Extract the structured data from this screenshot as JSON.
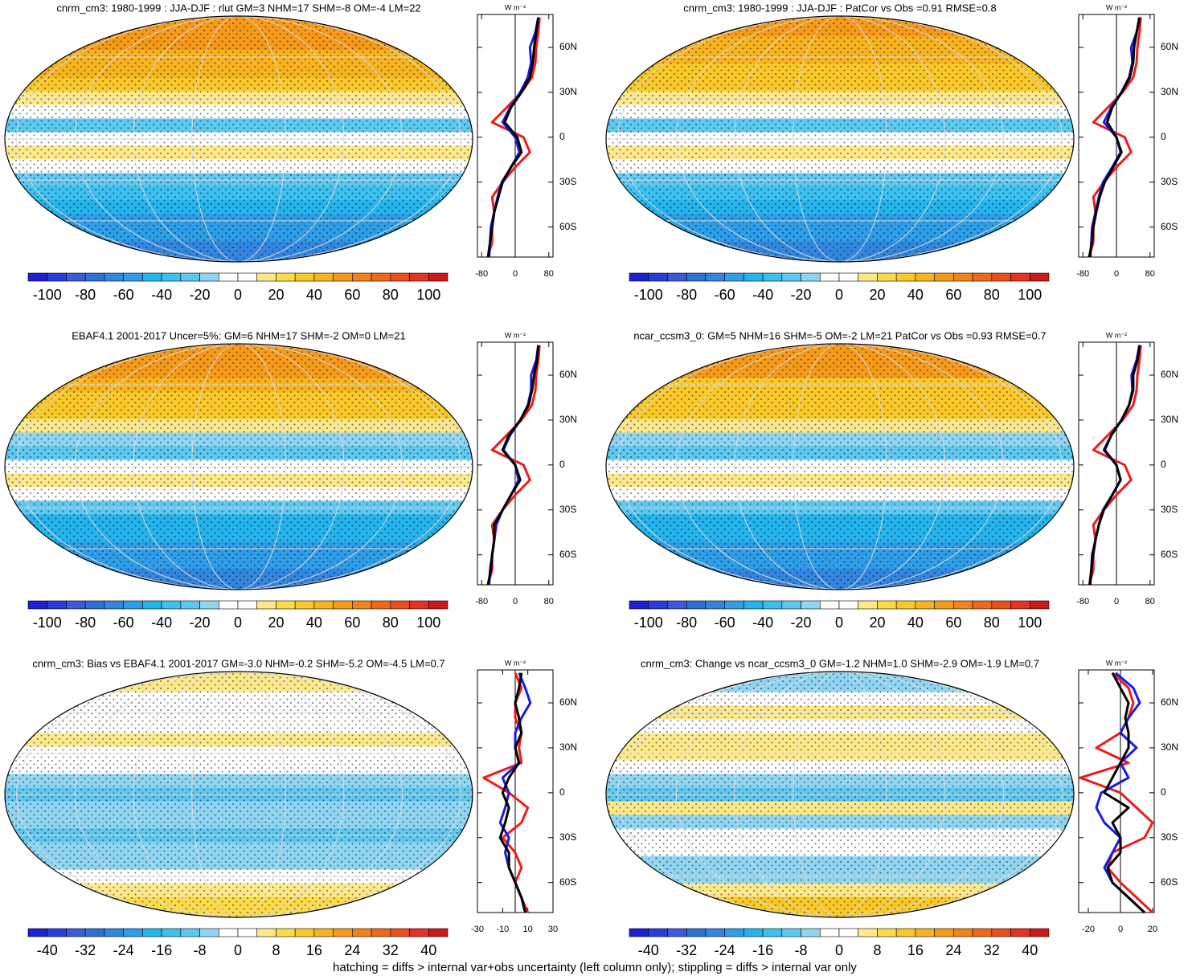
{
  "chart_data": [
    {
      "type": "zonal-map",
      "title": "cnrm_cm3: 1980-1999 : JJA-DJF : rlut GM=3 NHM=17 SHM=-8 OM=-4 LM=22",
      "units": "W m⁻²",
      "colorbar": {
        "lim": [
          -110,
          110
        ],
        "ticks": [
          -100,
          -80,
          -60,
          -40,
          -20,
          0,
          20,
          40,
          60,
          80,
          100
        ],
        "colors": [
          "#1f1fd6",
          "#2a3cdc",
          "#3b5bdc",
          "#2f70d8",
          "#3386e0",
          "#2f9ee8",
          "#25b4ec",
          "#3cc0f0",
          "#5ec8f0",
          "#8fd5f2",
          "#ffffff",
          "#ffffff",
          "#fde98a",
          "#fbdb4a",
          "#f9c82a",
          "#f8b420",
          "#f59a1a",
          "#f2821a",
          "#ee6a1a",
          "#e9501e",
          "#e53224",
          "#cc1a1a"
        ]
      },
      "xlim": [
        -90,
        90
      ],
      "xticks": [
        -80,
        0,
        80
      ],
      "ylim": [
        -80,
        82
      ],
      "yticks": [
        {
          "value": 60,
          "label": "60N"
        },
        {
          "value": 30,
          "label": "30N"
        },
        0,
        {
          "value": -30,
          "label": "30S"
        },
        {
          "value": -60,
          "label": "60S"
        }
      ],
      "y": [
        80,
        70,
        60,
        50,
        40,
        30,
        20,
        10,
        0,
        -10,
        -20,
        -30,
        -40,
        -50,
        -60,
        -70,
        -80
      ],
      "series": [
        {
          "color": "#000000",
          "values": [
            55,
            50,
            45,
            42,
            35,
            15,
            -10,
            -25,
            5,
            15,
            -10,
            -30,
            -40,
            -50,
            -55,
            -60,
            -65
          ]
        },
        {
          "color": "#1a1ae6",
          "values": [
            55,
            48,
            35,
            38,
            30,
            12,
            -12,
            -30,
            0,
            10,
            -10,
            -32,
            -42,
            -50,
            -58,
            -60,
            -62
          ]
        },
        {
          "color": "#ee1c1c",
          "values": [
            58,
            55,
            50,
            48,
            40,
            15,
            -20,
            -55,
            20,
            35,
            0,
            -30,
            -55,
            -50,
            -55,
            -55,
            -65
          ]
        }
      ]
    },
    {
      "type": "zonal-map",
      "title": "cnrm_cm3: 1980-1999 : JJA-DJF : PatCor vs Obs =0.91 RMSE=0.8",
      "units": "W m⁻²",
      "colorbar": {
        "lim": [
          -110,
          110
        ],
        "ticks": [
          -100,
          -80,
          -60,
          -40,
          -20,
          0,
          20,
          40,
          60,
          80,
          100
        ],
        "colors": [
          "#1f1fd6",
          "#2a3cdc",
          "#3b5bdc",
          "#2f70d8",
          "#3386e0",
          "#2f9ee8",
          "#25b4ec",
          "#3cc0f0",
          "#5ec8f0",
          "#8fd5f2",
          "#ffffff",
          "#ffffff",
          "#fde98a",
          "#fbdb4a",
          "#f9c82a",
          "#f8b420",
          "#f59a1a",
          "#f2821a",
          "#ee6a1a",
          "#e9501e",
          "#e53224",
          "#cc1a1a"
        ]
      },
      "xlim": [
        -90,
        90
      ],
      "xticks": [
        -80,
        0,
        80
      ],
      "ylim": [
        -80,
        82
      ],
      "yticks": [
        {
          "value": 60,
          "label": "60N"
        },
        {
          "value": 30,
          "label": "30N"
        },
        0,
        {
          "value": -30,
          "label": "30S"
        },
        {
          "value": -60,
          "label": "60S"
        }
      ],
      "y": [
        80,
        70,
        60,
        50,
        40,
        30,
        20,
        10,
        0,
        -10,
        -20,
        -30,
        -40,
        -50,
        -60,
        -70,
        -80
      ],
      "series": [
        {
          "color": "#000000",
          "values": [
            55,
            48,
            42,
            40,
            32,
            12,
            -10,
            -22,
            0,
            12,
            -8,
            -28,
            -40,
            -48,
            -55,
            -58,
            -65
          ]
        },
        {
          "color": "#1a1ae6",
          "values": [
            55,
            48,
            35,
            38,
            30,
            12,
            -12,
            -30,
            0,
            10,
            -10,
            -32,
            -42,
            -50,
            -58,
            -60,
            -62
          ]
        },
        {
          "color": "#ee1c1c",
          "values": [
            58,
            55,
            50,
            48,
            40,
            15,
            -20,
            -55,
            20,
            35,
            0,
            -30,
            -55,
            -50,
            -55,
            -55,
            -65
          ]
        }
      ]
    },
    {
      "type": "zonal-map",
      "title": "EBAF4.1 2001-2017 Uncer=5%: GM=6 NHM=17 SHM=-2 OM=0 LM=21",
      "units": "W m⁻²",
      "colorbar": {
        "lim": [
          -110,
          110
        ],
        "ticks": [
          -100,
          -80,
          -60,
          -40,
          -20,
          0,
          20,
          40,
          60,
          80,
          100
        ],
        "colors": [
          "#1f1fd6",
          "#2a3cdc",
          "#3b5bdc",
          "#2f70d8",
          "#3386e0",
          "#2f9ee8",
          "#25b4ec",
          "#3cc0f0",
          "#5ec8f0",
          "#8fd5f2",
          "#ffffff",
          "#ffffff",
          "#fde98a",
          "#fbdb4a",
          "#f9c82a",
          "#f8b420",
          "#f59a1a",
          "#f2821a",
          "#ee6a1a",
          "#e9501e",
          "#e53224",
          "#cc1a1a"
        ]
      },
      "xlim": [
        -90,
        90
      ],
      "xticks": [
        -80,
        0,
        80
      ],
      "ylim": [
        -80,
        82
      ],
      "yticks": [
        {
          "value": 60,
          "label": "60N"
        },
        {
          "value": 30,
          "label": "30N"
        },
        0,
        {
          "value": -30,
          "label": "30S"
        },
        {
          "value": -60,
          "label": "60S"
        }
      ],
      "y": [
        80,
        70,
        60,
        50,
        40,
        30,
        20,
        10,
        0,
        -10,
        -20,
        -30,
        -40,
        -50,
        -60,
        -70,
        -80
      ],
      "series": [
        {
          "color": "#000000",
          "values": [
            55,
            52,
            45,
            40,
            32,
            12,
            -15,
            -30,
            0,
            12,
            -10,
            -30,
            -50,
            -50,
            -55,
            -58,
            -65
          ]
        },
        {
          "color": "#1a1ae6",
          "values": [
            55,
            50,
            38,
            38,
            30,
            12,
            -12,
            -28,
            0,
            8,
            -10,
            -30,
            -45,
            -50,
            -55,
            -60,
            -62
          ]
        },
        {
          "color": "#ee1c1c",
          "values": [
            58,
            55,
            50,
            48,
            40,
            15,
            -20,
            -55,
            20,
            35,
            0,
            -30,
            -55,
            -50,
            -55,
            -55,
            -65
          ]
        }
      ]
    },
    {
      "type": "zonal-map",
      "title": "ncar_ccsm3_0: GM=5 NHM=16 SHM=-5 OM=-2 LM=21 PatCor vs Obs =0.93 RMSE=0.7",
      "units": "W m⁻²",
      "colorbar": {
        "lim": [
          -110,
          110
        ],
        "ticks": [
          -100,
          -80,
          -60,
          -40,
          -20,
          0,
          20,
          40,
          60,
          80,
          100
        ],
        "colors": [
          "#1f1fd6",
          "#2a3cdc",
          "#3b5bdc",
          "#2f70d8",
          "#3386e0",
          "#2f9ee8",
          "#25b4ec",
          "#3cc0f0",
          "#5ec8f0",
          "#8fd5f2",
          "#ffffff",
          "#ffffff",
          "#fde98a",
          "#fbdb4a",
          "#f9c82a",
          "#f8b420",
          "#f59a1a",
          "#f2821a",
          "#ee6a1a",
          "#e9501e",
          "#e53224",
          "#cc1a1a"
        ]
      },
      "xlim": [
        -90,
        90
      ],
      "xticks": [
        -80,
        0,
        80
      ],
      "ylim": [
        -80,
        82
      ],
      "yticks": [
        {
          "value": 60,
          "label": "60N"
        },
        {
          "value": 30,
          "label": "30N"
        },
        0,
        {
          "value": -30,
          "label": "30S"
        },
        {
          "value": -60,
          "label": "60S"
        }
      ],
      "y": [
        80,
        70,
        60,
        50,
        40,
        30,
        20,
        10,
        0,
        -10,
        -20,
        -30,
        -40,
        -50,
        -60,
        -70,
        -80
      ],
      "series": [
        {
          "color": "#000000",
          "values": [
            55,
            50,
            40,
            40,
            30,
            12,
            -12,
            -28,
            0,
            10,
            -10,
            -30,
            -42,
            -50,
            -56,
            -60,
            -64
          ]
        },
        {
          "color": "#1a1ae6",
          "values": [
            55,
            48,
            36,
            38,
            30,
            12,
            -12,
            -30,
            0,
            10,
            -10,
            -32,
            -42,
            -50,
            -58,
            -60,
            -62
          ]
        },
        {
          "color": "#ee1c1c",
          "values": [
            58,
            55,
            50,
            48,
            40,
            15,
            -20,
            -55,
            20,
            35,
            0,
            -30,
            -55,
            -50,
            -55,
            -55,
            -65
          ]
        }
      ]
    },
    {
      "type": "zonal-map",
      "title": "cnrm_cm3: Bias vs EBAF4.1 2001-2017 GM=-3.0 NHM=-0.2 SHM=-5.2 OM=-4.5 LM=0.7",
      "units": "W m⁻²",
      "colorbar": {
        "lim": [
          -44,
          44
        ],
        "ticks": [
          -40,
          -32,
          -24,
          -16,
          -8,
          0,
          8,
          16,
          24,
          32,
          40
        ],
        "colors": [
          "#1f1fd6",
          "#2a3cdc",
          "#3b5bdc",
          "#2f70d8",
          "#3386e0",
          "#2f9ee8",
          "#25b4ec",
          "#3cc0f0",
          "#5ec8f0",
          "#8fd5f2",
          "#ffffff",
          "#ffffff",
          "#fde98a",
          "#fbdb4a",
          "#f9c82a",
          "#f8b420",
          "#f59a1a",
          "#f2821a",
          "#ee6a1a",
          "#e9501e",
          "#e53224",
          "#cc1a1a"
        ]
      },
      "xlim": [
        -30,
        30
      ],
      "xticks": [
        -30,
        -10,
        10,
        30
      ],
      "ylim": [
        -80,
        82
      ],
      "yticks": [
        {
          "value": 60,
          "label": "60N"
        },
        {
          "value": 30,
          "label": "30N"
        },
        0,
        {
          "value": -30,
          "label": "30S"
        },
        {
          "value": -60,
          "label": "60S"
        }
      ],
      "y": [
        80,
        70,
        60,
        50,
        40,
        30,
        20,
        10,
        0,
        -10,
        -20,
        -30,
        -40,
        -50,
        -60,
        -70,
        -80
      ],
      "series": [
        {
          "color": "#000000",
          "values": [
            5,
            3,
            0,
            3,
            5,
            0,
            3,
            -5,
            -10,
            -5,
            -8,
            -12,
            -5,
            -5,
            0,
            5,
            8
          ]
        },
        {
          "color": "#1a1ae6",
          "values": [
            3,
            8,
            12,
            5,
            0,
            0,
            3,
            -10,
            -5,
            -8,
            -12,
            -5,
            -8,
            -5,
            0,
            5,
            8
          ]
        },
        {
          "color": "#ee1c1c",
          "values": [
            0,
            5,
            0,
            0,
            5,
            3,
            5,
            -25,
            -5,
            10,
            5,
            -10,
            0,
            5,
            0,
            5,
            10
          ]
        }
      ]
    },
    {
      "type": "zonal-map",
      "title": "cnrm_cm3: Change vs ncar_ccsm3_0 GM=-1.2 NHM=1.0 SHM=-2.9 OM=-1.9 LM=0.7",
      "units": "W m⁻²",
      "colorbar": {
        "lim": [
          -44,
          44
        ],
        "ticks": [
          -40,
          -32,
          -24,
          -16,
          -8,
          0,
          8,
          16,
          24,
          32,
          40
        ],
        "colors": [
          "#1f1fd6",
          "#2a3cdc",
          "#3b5bdc",
          "#2f70d8",
          "#3386e0",
          "#2f9ee8",
          "#25b4ec",
          "#3cc0f0",
          "#5ec8f0",
          "#8fd5f2",
          "#ffffff",
          "#ffffff",
          "#fde98a",
          "#fbdb4a",
          "#f9c82a",
          "#f8b420",
          "#f59a1a",
          "#f2821a",
          "#ee6a1a",
          "#e9501e",
          "#e53224",
          "#cc1a1a"
        ]
      },
      "xlim": [
        -26,
        21
      ],
      "xticks": [
        -20,
        0,
        20
      ],
      "ylim": [
        -80,
        82
      ],
      "yticks": [
        {
          "value": 60,
          "label": "60N"
        },
        {
          "value": 30,
          "label": "30N"
        },
        0,
        {
          "value": -30,
          "label": "30S"
        },
        {
          "value": -60,
          "label": "60S"
        }
      ],
      "y": [
        80,
        70,
        60,
        50,
        40,
        30,
        20,
        10,
        0,
        -10,
        -20,
        -30,
        -40,
        -50,
        -60,
        -70,
        -80
      ],
      "series": [
        {
          "color": "#000000",
          "values": [
            -5,
            0,
            5,
            3,
            5,
            5,
            0,
            -5,
            -10,
            5,
            -5,
            0,
            0,
            -8,
            -5,
            5,
            15
          ]
        },
        {
          "color": "#1a1ae6",
          "values": [
            -3,
            8,
            12,
            5,
            0,
            10,
            0,
            5,
            -12,
            -15,
            -10,
            0,
            -5,
            -10,
            -5,
            5,
            15
          ]
        },
        {
          "color": "#ee1c1c",
          "values": [
            -5,
            5,
            8,
            5,
            0,
            -15,
            5,
            -25,
            0,
            10,
            20,
            15,
            -5,
            -8,
            0,
            10,
            20
          ]
        }
      ]
    }
  ],
  "caption": "hatching = diffs > internal var+obs uncertainty (left column only); stippling = diffs > internal var only"
}
